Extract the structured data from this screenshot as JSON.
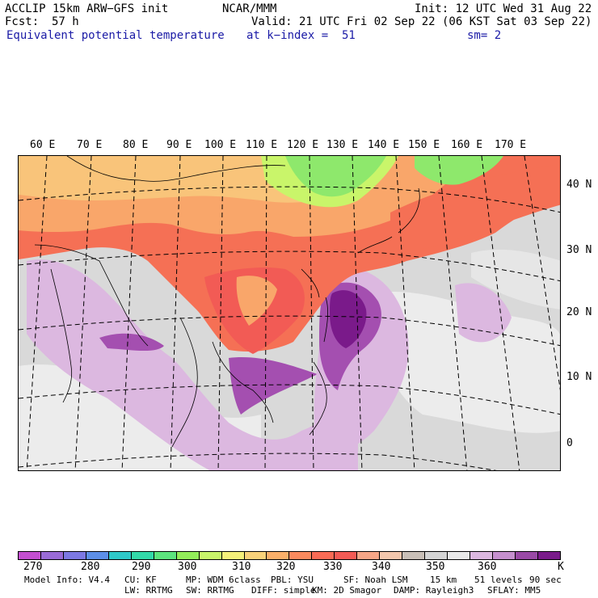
{
  "header": {
    "model": "ACCLIP 15km ARW−GFS init",
    "org": "NCAR/MMM",
    "init": "Init: 12 UTC Wed 31 Aug 22",
    "fcst_label": "Fcst:",
    "fcst_value": "57 h",
    "valid": "Valid: 21 UTC Fri 02 Sep 22 (06 KST Sat 03 Sep 22)",
    "field": "Equivalent potential temperature",
    "level": "at k−index =  51",
    "smooth": "sm= 2"
  },
  "lon_labels": [
    "60 E",
    "70 E",
    "80 E",
    "90 E",
    "100 E",
    "110 E",
    "120 E",
    "130 E",
    "140 E",
    "150 E",
    "160 E",
    "170 E"
  ],
  "lat_labels": [
    "40 N",
    "30 N",
    "20 N",
    "10 N",
    "0"
  ],
  "colorbar": {
    "colors": [
      "#c44fd0",
      "#9a6bd6",
      "#7d79e3",
      "#5d8fe8",
      "#2fc9c9",
      "#33d9a9",
      "#5de57e",
      "#93ee5a",
      "#c9f56a",
      "#f5f07a",
      "#f9d27a",
      "#fbb06a",
      "#fa8a5e",
      "#f96b55",
      "#f25b55",
      "#f6a687",
      "#f3c7ad",
      "#c9c0b8",
      "#d5d5d5",
      "#e9e9e9",
      "#dcb8e0",
      "#c690cf",
      "#9a4aa6",
      "#7a1a8a"
    ],
    "labels": [
      "270",
      "280",
      "290",
      "300",
      "310",
      "320",
      "330",
      "340",
      "350",
      "360"
    ],
    "unit": "K"
  },
  "footer": {
    "line1": [
      "Model Info: V4.4",
      "CU: KF",
      "MP: WDM 6class",
      "PBL: YSU",
      "SF: Noah LSM",
      "15 km",
      "51 levels",
      "90 sec"
    ],
    "line2": [
      "LW: RRTMG",
      "SW: RRTMG",
      "DIFF: simple",
      "KM: 2D Smagor",
      "DAMP: Rayleigh3",
      "SFLAY: MM5"
    ]
  },
  "colors": {
    "land_warm": "#f57055",
    "land_hot": "#f9c47a",
    "cool": "#8ee86c",
    "ocean": "#d2d2d2",
    "ocean_light": "#ececec",
    "purple_light": "#dcb8e0",
    "purple": "#a44fb0",
    "purple_dark": "#7a1a8a"
  }
}
